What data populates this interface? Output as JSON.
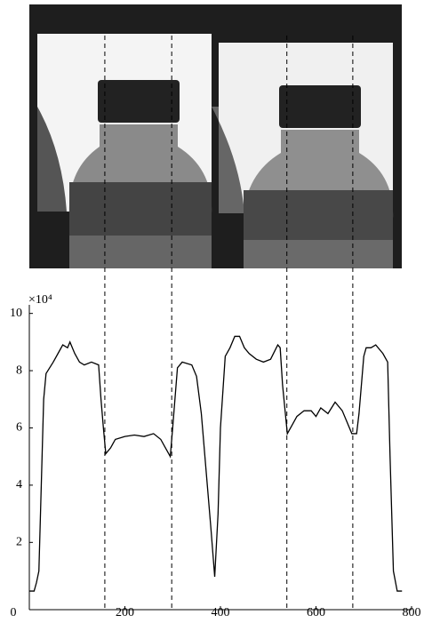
{
  "chart_data": {
    "type": "line",
    "y_multiplier": "×10⁴",
    "x": [
      0,
      10,
      15,
      20,
      25,
      30,
      35,
      50,
      60,
      70,
      80,
      85,
      95,
      105,
      115,
      130,
      145,
      150,
      155,
      160,
      170,
      180,
      200,
      220,
      240,
      260,
      275,
      285,
      295,
      300,
      310,
      320,
      340,
      350,
      360,
      370,
      380,
      388,
      395,
      400,
      410,
      420,
      430,
      440,
      450,
      460,
      475,
      490,
      505,
      520,
      525,
      530,
      540,
      550,
      560,
      575,
      590,
      600,
      610,
      625,
      640,
      655,
      665,
      675,
      685,
      690,
      700,
      705,
      715,
      725,
      740,
      750,
      755,
      762,
      770,
      780
    ],
    "series": [
      {
        "color": "#000000",
        "values": [
          0.3,
          0.3,
          0.6,
          1,
          4,
          7,
          7.9,
          8.3,
          8.6,
          8.9,
          8.8,
          9.0,
          8.6,
          8.3,
          8.2,
          8.3,
          8.2,
          7.0,
          6.0,
          5.1,
          5.3,
          5.6,
          5.7,
          5.75,
          5.7,
          5.8,
          5.6,
          5.3,
          5.0,
          6.0,
          8.1,
          8.3,
          8.2,
          7.8,
          6.5,
          4.5,
          2.5,
          0.8,
          3,
          6,
          8.5,
          8.8,
          9.2,
          9.2,
          8.8,
          8.6,
          8.4,
          8.3,
          8.4,
          8.9,
          8.8,
          7.5,
          5.8,
          6.1,
          6.4,
          6.6,
          6.6,
          6.4,
          6.7,
          6.5,
          6.9,
          6.6,
          6.2,
          5.8,
          5.8,
          6.5,
          8.5,
          8.8,
          8.8,
          8.9,
          8.6,
          8.3,
          5,
          1,
          0.3,
          0.3
        ]
      }
    ],
    "xlim": [
      0,
      800
    ],
    "xticks": [
      0,
      200,
      400,
      600,
      800
    ],
    "ylim": [
      -0.35,
      10.3
    ],
    "yticks": [
      2,
      4,
      6,
      8,
      10
    ],
    "vlines": [
      158,
      298,
      539,
      677
    ]
  }
}
